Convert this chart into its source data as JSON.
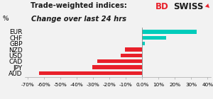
{
  "title_line1": "Trade-weighted indices:",
  "title_line2": "Change over last 24 hrs",
  "ylabel": "%",
  "categories": [
    "EUR",
    "CHF",
    "GBP",
    "NZD",
    "USD",
    "CAD",
    "JPY",
    "AUD"
  ],
  "values": [
    0.335,
    0.145,
    0.018,
    -0.105,
    -0.13,
    -0.275,
    -0.305,
    -0.63
  ],
  "bar_colors": [
    "#00CCBB",
    "#00CCBB",
    "#00CCBB",
    "#E8202A",
    "#E8202A",
    "#E8202A",
    "#E8202A",
    "#E8202A"
  ],
  "xlim": [
    -0.72,
    0.42
  ],
  "xticks": [
    -0.7,
    -0.6,
    -0.5,
    -0.4,
    -0.3,
    -0.2,
    -0.1,
    0.0,
    0.1,
    0.2,
    0.3,
    0.4
  ],
  "background_color": "#f2f2f2",
  "logo_bd": "BD",
  "logo_swiss": "SWISS",
  "logo_color_bd": "#E8202A",
  "logo_color_swiss": "#1a1a1a",
  "title_fontsize": 7.2,
  "ylabel_fontsize": 6.5,
  "ytick_fontsize": 6.5,
  "xtick_fontsize": 5.2
}
